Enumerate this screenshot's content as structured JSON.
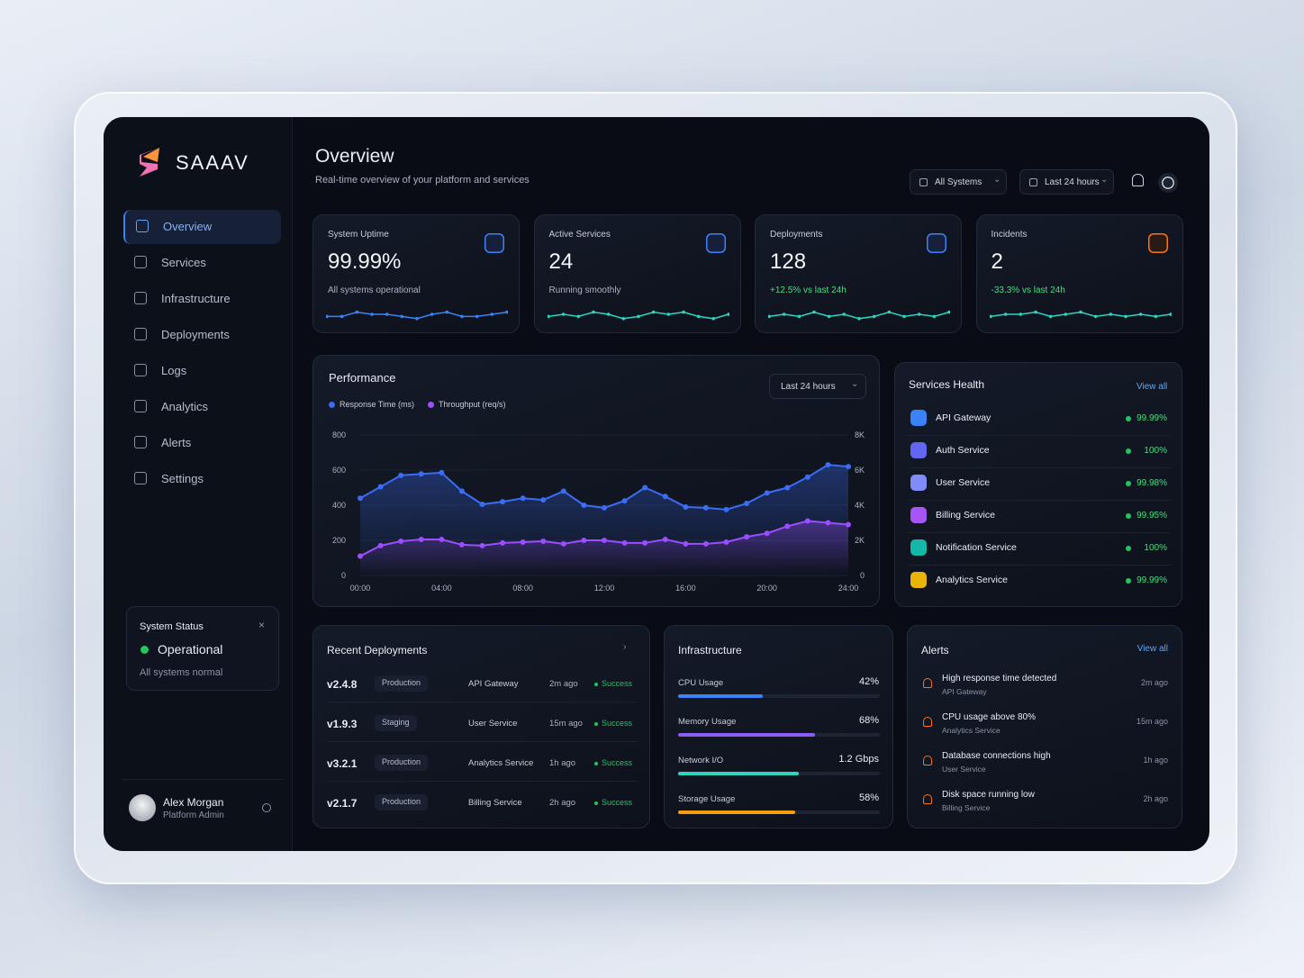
{
  "brand": "SAAAV",
  "nav": [
    "Overview",
    "Services",
    "Infrastructure",
    "Deployments",
    "Logs",
    "Analytics",
    "Alerts",
    "Settings"
  ],
  "system_status": {
    "title": "System Status",
    "state": "Operational",
    "note": "All systems normal"
  },
  "user": {
    "name": "Alex Morgan",
    "role": "Platform Admin"
  },
  "header": {
    "title": "Overview",
    "subtitle": "Real-time overview of your platform and services",
    "filters": [
      "All Systems",
      "Last 24 hours"
    ]
  },
  "cards": [
    {
      "title": "System Uptime",
      "value": "99.99%",
      "note": "All systems operational",
      "color": "#3b82f6",
      "sparkline_lim": [
        0,
        10
      ],
      "sparkline": [
        4,
        4,
        6,
        5,
        5,
        4,
        3,
        5,
        6,
        4,
        4,
        5,
        6
      ]
    },
    {
      "title": "Active Services",
      "value": "24",
      "note": "Running smoothly",
      "color": "#2dd4bf",
      "sparkline_lim": [
        0,
        10
      ],
      "sparkline": [
        4,
        5,
        4,
        6,
        5,
        3,
        4,
        6,
        5,
        6,
        4,
        3,
        5
      ]
    },
    {
      "title": "Deployments",
      "value": "128",
      "note": "+12.5% vs last 24h",
      "color": "#2dd4bf",
      "sparkline_lim": [
        0,
        10
      ],
      "sparkline": [
        4,
        5,
        4,
        6,
        4,
        5,
        3,
        4,
        6,
        4,
        5,
        4,
        6
      ]
    },
    {
      "title": "Incidents",
      "value": "2",
      "note": "-33.3% vs last 24h",
      "color": "#2dd4bf",
      "sparkline_lim": [
        0,
        10
      ],
      "sparkline": [
        4,
        5,
        5,
        6,
        4,
        5,
        6,
        4,
        5,
        4,
        5,
        4,
        5
      ]
    }
  ],
  "chart_data": {
    "type": "line",
    "title": "Performance",
    "range": "Last 24 hours",
    "x": [
      0,
      1,
      2,
      3,
      4,
      5,
      6,
      7,
      8,
      9,
      10,
      11,
      12,
      13,
      14,
      15,
      16,
      17,
      18,
      19,
      20,
      21,
      22,
      23,
      24
    ],
    "xlim": [
      0,
      24
    ],
    "xticks": [
      {
        "value": 0,
        "label": "00:00"
      },
      {
        "value": 4,
        "label": "04:00"
      },
      {
        "value": 8,
        "label": "08:00"
      },
      {
        "value": 12,
        "label": "12:00"
      },
      {
        "value": 16,
        "label": "16:00"
      },
      {
        "value": 20,
        "label": "20:00"
      },
      {
        "value": 24,
        "label": "24:00"
      }
    ],
    "ylim": [
      0,
      800
    ],
    "yticks": [
      0,
      200,
      400,
      600,
      800
    ],
    "y2lim": [
      0,
      8000
    ],
    "y2ticks": [
      0,
      {
        "value": 2000,
        "label": "2K"
      },
      {
        "value": 4000,
        "label": "4K"
      },
      {
        "value": 6000,
        "label": "6K"
      },
      {
        "value": 8000,
        "label": "8K"
      }
    ],
    "series": [
      {
        "name": "Response Time (ms)",
        "color": "#3b6cf6",
        "values": [
          440,
          505,
          570,
          578,
          585,
          480,
          405,
          420,
          440,
          430,
          480,
          400,
          385,
          425,
          500,
          450,
          390,
          385,
          375,
          410,
          470,
          500,
          560,
          630,
          620
        ]
      },
      {
        "name": "Throughput (req/s)",
        "color": "#9b4dff",
        "axis": "y2",
        "values": [
          1100,
          1700,
          1950,
          2050,
          2050,
          1750,
          1700,
          1850,
          1900,
          1950,
          1800,
          2000,
          2000,
          1850,
          1850,
          2050,
          1800,
          1800,
          1900,
          2200,
          2400,
          2800,
          3100,
          3000,
          2900
        ]
      }
    ]
  },
  "services_health": {
    "title": "Services Health",
    "link": "View all",
    "items": [
      {
        "name": "API Gateway",
        "value": "99.99%"
      },
      {
        "name": "Auth Service",
        "value": "100%"
      },
      {
        "name": "User Service",
        "value": "99.98%"
      },
      {
        "name": "Billing Service",
        "value": "99.95%"
      },
      {
        "name": "Notification Service",
        "value": "100%"
      },
      {
        "name": "Analytics Service",
        "value": "99.99%"
      }
    ]
  },
  "deployments": {
    "title": "Recent Deployments",
    "rows": [
      [
        "v2.4.8",
        "Production",
        "API Gateway",
        "2m ago",
        "Success"
      ],
      [
        "v1.9.3",
        "Staging",
        "User Service",
        "15m ago",
        "Success"
      ],
      [
        "v3.2.1",
        "Production",
        "Analytics Service",
        "1h ago",
        "Success"
      ],
      [
        "v2.1.7",
        "Production",
        "Billing Service",
        "2h ago",
        "Success"
      ]
    ]
  },
  "infrastructure": {
    "title": "Infrastructure",
    "items": [
      {
        "label": "CPU Usage",
        "value": 42,
        "value_label": "42%",
        "lim": [
          0,
          100
        ],
        "color": "#3b82f6"
      },
      {
        "label": "Memory Usage",
        "value": 68,
        "value_label": "68%",
        "lim": [
          0,
          100
        ],
        "color": "#8b5cf6"
      },
      {
        "label": "Network I/O",
        "value": 1.2,
        "value_label": "1.2 Gbps",
        "lim": [
          0,
          2
        ],
        "color": "#2dd4bf"
      },
      {
        "label": "Storage Usage",
        "value": 58,
        "value_label": "58%",
        "lim": [
          0,
          100
        ],
        "color": "#f59e0b"
      }
    ]
  },
  "alerts": {
    "title": "Alerts",
    "link": "View all",
    "items": [
      {
        "title": "High response time detected",
        "source": "API Gateway",
        "time": "2m ago"
      },
      {
        "title": "CPU usage above 80%",
        "source": "Analytics Service",
        "time": "15m ago"
      },
      {
        "title": "Database connections high",
        "source": "User Service",
        "time": "1h ago"
      },
      {
        "title": "Disk space running low",
        "source": "Billing Service",
        "time": "2h ago"
      }
    ]
  }
}
